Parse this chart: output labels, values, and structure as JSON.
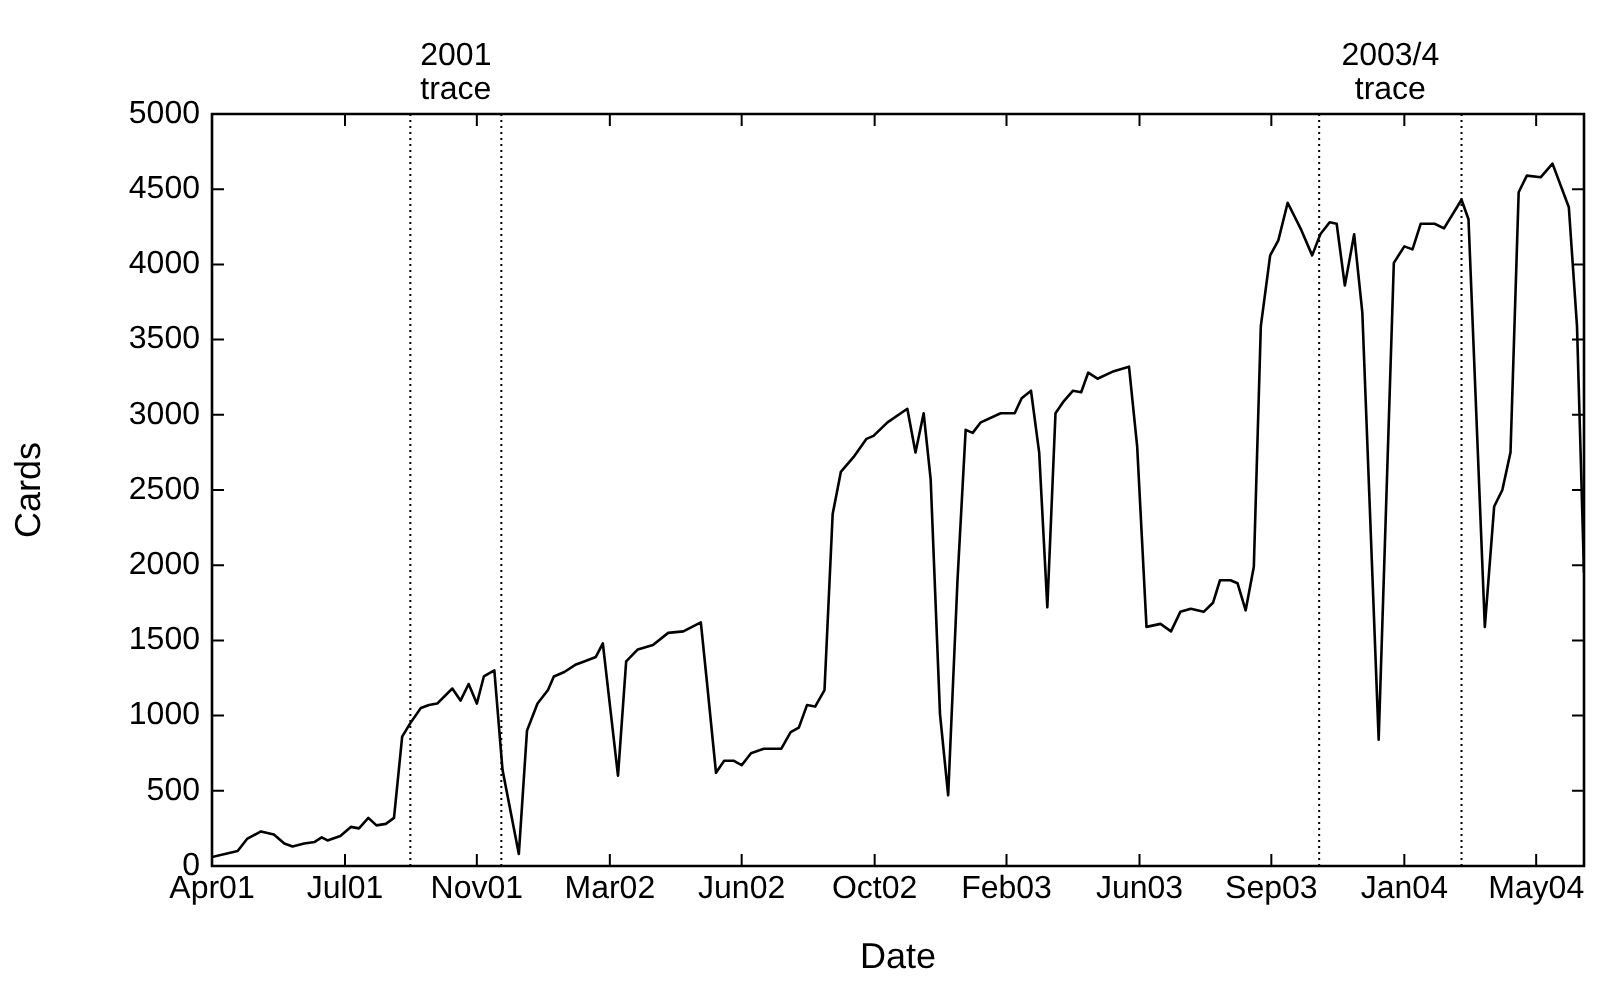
{
  "chart_data": {
    "type": "line",
    "xlabel": "Date",
    "ylabel": "Cards",
    "x": [
      "2001-04-01",
      "2001-04-23",
      "2001-05-01",
      "2001-05-13",
      "2001-05-24",
      "2001-06-02",
      "2001-06-09",
      "2001-06-19",
      "2001-06-28",
      "2001-07-04",
      "2001-07-09",
      "2001-07-20",
      "2001-07-29",
      "2001-08-05",
      "2001-08-13",
      "2001-08-20",
      "2001-08-28",
      "2001-09-04",
      "2001-09-11",
      "2001-09-18",
      "2001-09-27",
      "2001-10-04",
      "2001-10-11",
      "2001-10-24",
      "2001-10-31",
      "2001-11-07",
      "2001-11-14",
      "2001-11-20",
      "2001-11-29",
      "2001-12-06",
      "2001-12-20",
      "2001-12-27",
      "2002-01-05",
      "2002-01-14",
      "2002-01-19",
      "2002-01-28",
      "2002-02-07",
      "2002-02-14",
      "2002-02-24",
      "2002-03-02",
      "2002-03-15",
      "2002-03-22",
      "2002-04-01",
      "2002-04-14",
      "2002-04-27",
      "2002-05-10",
      "2002-05-25",
      "2002-05-30",
      "2002-06-07",
      "2002-06-14",
      "2002-06-22",
      "2002-06-29",
      "2002-07-07",
      "2002-07-18",
      "2002-08-02",
      "2002-08-10",
      "2002-08-17",
      "2002-08-24",
      "2002-08-31",
      "2002-09-08",
      "2002-09-15",
      "2002-09-22",
      "2002-10-03",
      "2002-10-14",
      "2002-10-20",
      "2002-11-01",
      "2002-11-18",
      "2002-11-25",
      "2002-12-02",
      "2002-12-08",
      "2002-12-16",
      "2002-12-23",
      "2002-12-31",
      "2003-01-07",
      "2003-01-13",
      "2003-01-20",
      "2003-02-06",
      "2003-02-18",
      "2003-02-24",
      "2003-03-04",
      "2003-03-11",
      "2003-03-18",
      "2003-03-25",
      "2003-04-01",
      "2003-04-09",
      "2003-04-16",
      "2003-04-22",
      "2003-04-30",
      "2003-05-14",
      "2003-05-27",
      "2003-06-03",
      "2003-06-11",
      "2003-06-23",
      "2003-07-02",
      "2003-07-10",
      "2003-07-19",
      "2003-07-30",
      "2003-08-07",
      "2003-08-13",
      "2003-08-22",
      "2003-08-28",
      "2003-09-04",
      "2003-09-11",
      "2003-09-17",
      "2003-09-25",
      "2003-10-02",
      "2003-10-10",
      "2003-10-21",
      "2003-10-31",
      "2003-11-07",
      "2003-11-15",
      "2003-11-21",
      "2003-11-28",
      "2003-12-06",
      "2003-12-13",
      "2003-12-27",
      "2004-01-09",
      "2004-01-18",
      "2004-01-25",
      "2004-02-01",
      "2004-02-13",
      "2004-02-21",
      "2004-03-07",
      "2004-03-13",
      "2004-03-27",
      "2004-04-04",
      "2004-04-11",
      "2004-04-18",
      "2004-04-25",
      "2004-05-02",
      "2004-05-14",
      "2004-05-24",
      "2004-06-07",
      "2004-06-14",
      "2004-06-20"
    ],
    "series": [
      {
        "color": "#000000",
        "values": [
          60,
          100,
          180,
          230,
          210,
          150,
          130,
          150,
          160,
          190,
          170,
          200,
          260,
          250,
          320,
          270,
          280,
          320,
          860,
          950,
          1050,
          1070,
          1080,
          1180,
          1100,
          1210,
          1080,
          1260,
          1300,
          640,
          80,
          900,
          1080,
          1170,
          1260,
          1290,
          1340,
          1360,
          1390,
          1480,
          600,
          1360,
          1440,
          1470,
          1550,
          1560,
          1620,
          1240,
          620,
          700,
          700,
          670,
          750,
          780,
          780,
          890,
          920,
          1070,
          1060,
          1170,
          2340,
          2620,
          2720,
          2840,
          2860,
          2950,
          3040,
          2750,
          3010,
          2570,
          1010,
          470,
          1900,
          2900,
          2880,
          2950,
          3010,
          3010,
          3110,
          3160,
          2750,
          1720,
          3010,
          3090,
          3160,
          3150,
          3280,
          3240,
          3290,
          3320,
          2790,
          1590,
          1610,
          1560,
          1690,
          1710,
          1690,
          1750,
          1900,
          1900,
          1880,
          1700,
          1990,
          3590,
          4060,
          4160,
          4410,
          4240,
          4060,
          4200,
          4280,
          4270,
          3860,
          4200,
          3680,
          840,
          4010,
          4120,
          4100,
          4270,
          4270,
          4240,
          4430,
          4300,
          1590,
          2390,
          2500,
          2750,
          4480,
          4590,
          4580,
          4670,
          4380,
          3590,
          1950
        ]
      }
    ],
    "xlim": [
      "2001-04-01",
      "2004-06-20"
    ],
    "xticks": [
      {
        "value": "2001-04-01",
        "label": "Apr01"
      },
      {
        "value": "2001-07-24",
        "label": "Jul01"
      },
      {
        "value": "2001-11-14",
        "label": "Nov01"
      },
      {
        "value": "2002-03-08",
        "label": "Mar02"
      },
      {
        "value": "2002-06-29",
        "label": "Jun02"
      },
      {
        "value": "2002-10-21",
        "label": "Oct02"
      },
      {
        "value": "2003-02-11",
        "label": "Feb03"
      },
      {
        "value": "2003-06-05",
        "label": "Jun03"
      },
      {
        "value": "2003-09-26",
        "label": "Sep03"
      },
      {
        "value": "2004-01-18",
        "label": "Jan04"
      },
      {
        "value": "2004-05-10",
        "label": "May04"
      }
    ],
    "ylim": [
      0,
      5000
    ],
    "yticks": [
      0,
      500,
      1000,
      1500,
      2000,
      2500,
      3000,
      3500,
      4000,
      4500,
      5000
    ],
    "ref_lines": [
      {
        "axis": "x",
        "value": "2001-09-18",
        "label": "2001 trace",
        "line_style": "dotted"
      },
      {
        "axis": "x",
        "value": "2001-12-05",
        "label": null,
        "line_style": "dotted"
      },
      {
        "axis": "x",
        "value": "2003-11-06",
        "label": "2003/4 trace",
        "line_style": "dotted"
      },
      {
        "axis": "x",
        "value": "2004-03-07",
        "label": null,
        "line_style": "dotted"
      }
    ],
    "grid": false,
    "legend": false
  }
}
